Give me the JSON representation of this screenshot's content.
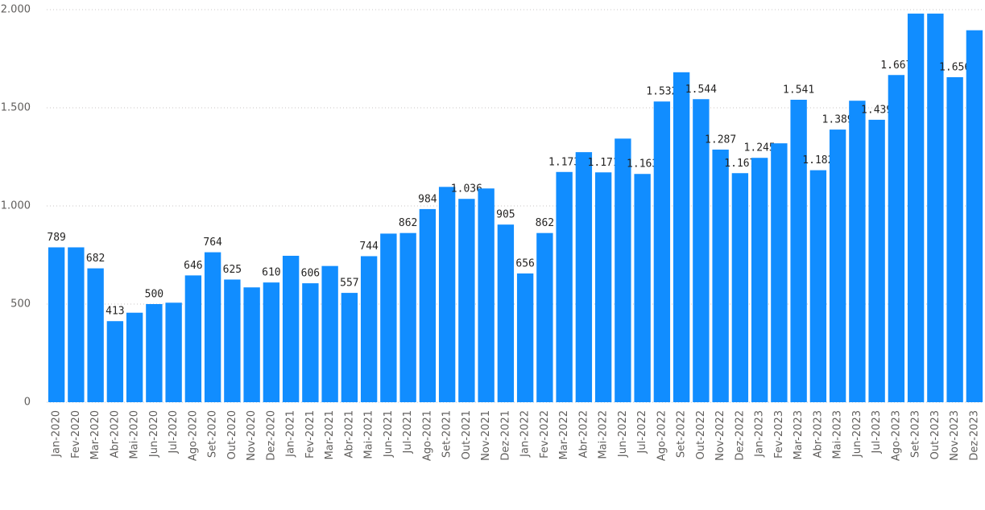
{
  "chart_data": {
    "type": "bar",
    "categories": [
      "Jan-2020",
      "Fev-2020",
      "Mar-2020",
      "Abr-2020",
      "Mai-2020",
      "Jun-2020",
      "Jul-2020",
      "Ago-2020",
      "Set-2020",
      "Out-2020",
      "Nov-2020",
      "Dez-2020",
      "Jan-2021",
      "Fev-2021",
      "Mar-2021",
      "Abr-2021",
      "Mai-2021",
      "Jun-2021",
      "Jul-2021",
      "Ago-2021",
      "Set-2021",
      "Out-2021",
      "Nov-2021",
      "Dez-2021",
      "Jan-2022",
      "Fev-2022",
      "Mar-2022",
      "Abr-2022",
      "Mai-2022",
      "Jun-2022",
      "Jul-2022",
      "Ago-2022",
      "Set-2022",
      "Out-2022",
      "Nov-2022",
      "Dez-2022",
      "Jan-2023",
      "Fev-2023",
      "Mar-2023",
      "Abr-2023",
      "Mai-2023",
      "Jun-2023",
      "Jul-2023",
      "Ago-2023",
      "Set-2023",
      "Out-2023",
      "Nov-2023",
      "Dez-2023"
    ],
    "values": [
      789,
      789,
      682,
      413,
      456,
      500,
      507,
      646,
      764,
      625,
      585,
      610,
      746,
      606,
      694,
      557,
      744,
      859,
      862,
      984,
      1097,
      1036,
      1089,
      905,
      656,
      862,
      1173,
      1274,
      1171,
      1343,
      1163,
      1532,
      1681,
      1544,
      1287,
      1167,
      1245,
      1319,
      1541,
      1182,
      1389,
      1536,
      1439,
      1667,
      1980,
      1980,
      1656,
      1895
    ],
    "value_labels": [
      "789",
      null,
      "682",
      "413",
      null,
      "500",
      null,
      "646",
      "764",
      "625",
      null,
      "610",
      null,
      "606",
      null,
      "557",
      "744",
      null,
      "862",
      "984",
      null,
      "1.036",
      null,
      "905",
      "656",
      "862",
      "1.173",
      null,
      "1.171",
      null,
      "1.163",
      "1.532",
      null,
      "1.544",
      "1.287",
      "1.167",
      "1.245",
      null,
      "1.541",
      "1.182",
      "1.389",
      null,
      "1.439",
      "1.667",
      null,
      null,
      "1.656",
      null
    ],
    "color": "#118dff",
    "ylim": [
      0,
      2000
    ],
    "yticks": [
      0,
      500,
      {
        "value": 1000,
        "label": "1.000"
      },
      {
        "value": 1500,
        "label": "1.500"
      },
      {
        "value": 2000,
        "label": "2.000"
      }
    ],
    "grid": true
  }
}
